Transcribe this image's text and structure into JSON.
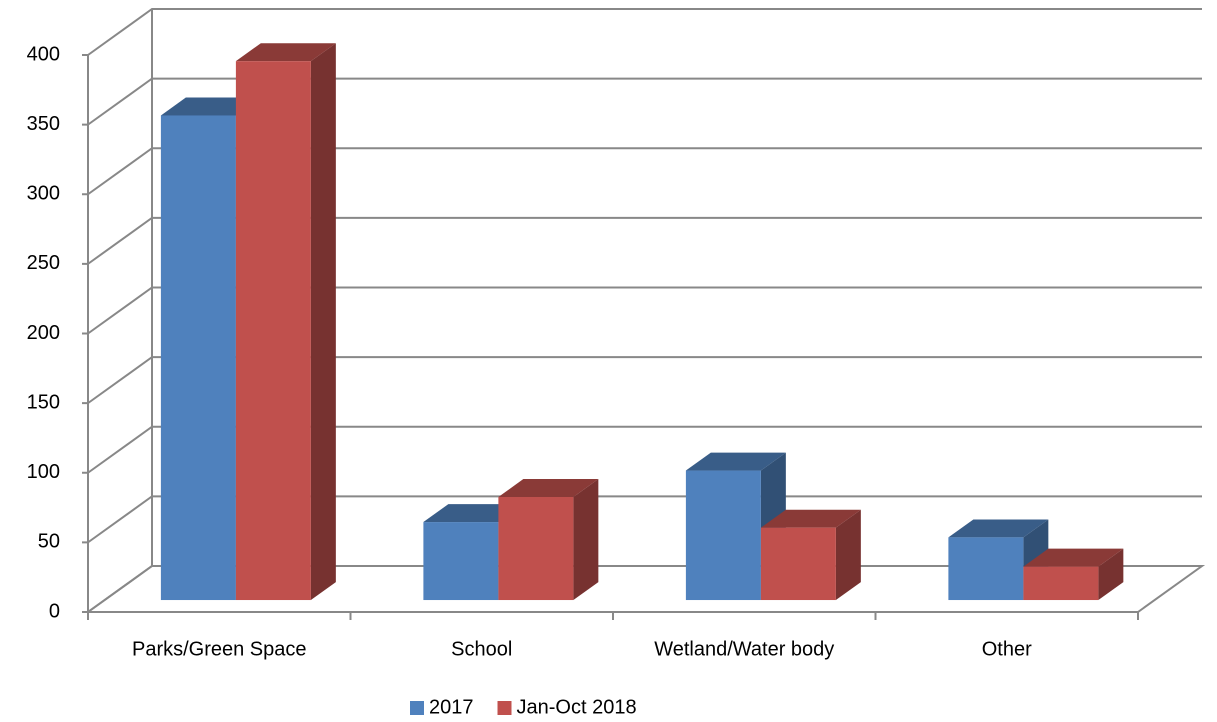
{
  "chart_data": {
    "type": "bar3d",
    "categories": [
      "Parks/Green Space",
      "School",
      "Wetland/Water body",
      "Other"
    ],
    "series": [
      {
        "name": "2017",
        "color": "#4f81bd",
        "values": [
          348,
          56,
          93,
          45
        ]
      },
      {
        "name": "Jan-Oct 2018",
        "color": "#c0504d",
        "values": [
          387,
          74,
          52,
          24
        ]
      }
    ],
    "ylim": [
      0,
      400
    ],
    "yticks": [
      0,
      50,
      100,
      150,
      200,
      250,
      300,
      350,
      400
    ],
    "grid": true,
    "legend": "bottom"
  }
}
